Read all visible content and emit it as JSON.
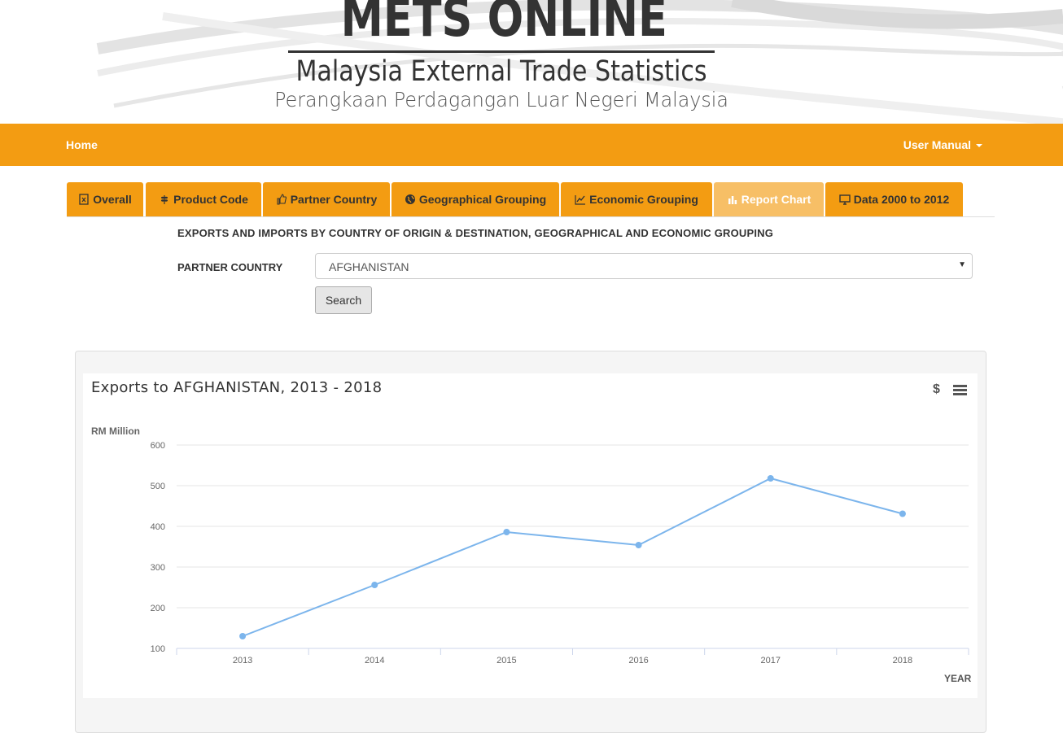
{
  "header": {
    "title": "METS ONLINE",
    "subtitle_en": "Malaysia External Trade Statistics",
    "subtitle_ms": "Perangkaan Perdagangan Luar Negeri Malaysia"
  },
  "navbar": {
    "home_label": "Home",
    "user_manual_label": "User Manual",
    "background_color": "#f39c12"
  },
  "tabs": [
    {
      "label": "Overall",
      "icon": "file-excel-icon"
    },
    {
      "label": "Product Code",
      "icon": "wheat-icon"
    },
    {
      "label": "Partner Country",
      "icon": "thumbs-up-icon"
    },
    {
      "label": "Geographical Grouping",
      "icon": "globe-icon"
    },
    {
      "label": "Economic Grouping",
      "icon": "line-chart-icon"
    },
    {
      "label": "Report Chart",
      "icon": "bar-chart-icon",
      "active": true
    },
    {
      "label": "Data 2000 to 2012",
      "icon": "monitor-icon"
    }
  ],
  "form": {
    "section_title": "EXPORTS AND IMPORTS BY COUNTRY OF ORIGIN & DESTINATION, GEOGRAPHICAL AND ECONOMIC GROUPING",
    "partner_label": "PARTNER COUNTRY",
    "partner_value": "AFGHANISTAN",
    "search_label": "Search"
  },
  "chart_toolbar": {
    "currency_symbol": "$",
    "menu_icon": "hamburger-menu-icon"
  },
  "chart_data": {
    "type": "line",
    "title": "Exports to AFGHANISTAN, 2013 - 2018",
    "xlabel": "YEAR",
    "ylabel": "RM Million",
    "categories": [
      "2013",
      "2014",
      "2015",
      "2016",
      "2017",
      "2018"
    ],
    "series": [
      {
        "values": [
          130,
          256,
          386,
          354,
          518,
          431
        ],
        "color": "#7cb5ec"
      }
    ],
    "ylim": [
      100,
      600
    ],
    "yticks": [
      100,
      200,
      300,
      400,
      500,
      600
    ],
    "grid": true,
    "legend": "none"
  }
}
